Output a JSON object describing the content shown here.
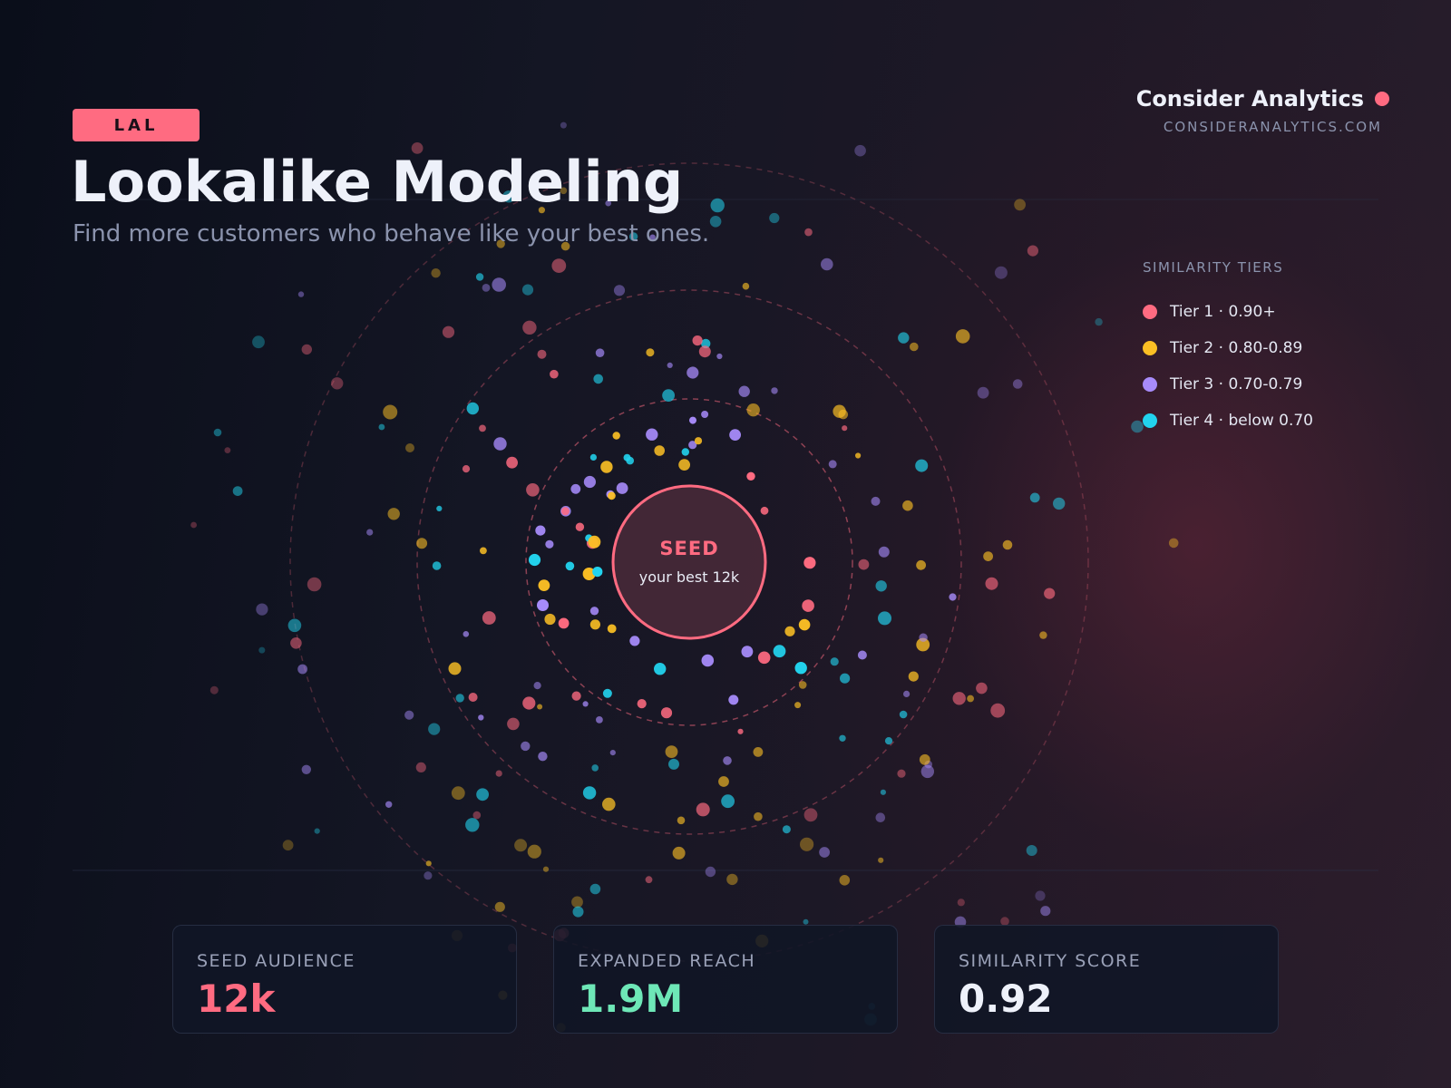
{
  "header": {
    "badge": "LAL",
    "title": "Lookalike Modeling",
    "subtitle": "Find more customers who behave like your best ones."
  },
  "brand": {
    "name": "Consider Analytics",
    "url": "CONSIDERANALYTICS.COM",
    "accent": "#ff6b81"
  },
  "seed": {
    "label": "SEED",
    "sublabel": "your best 12k"
  },
  "legend": {
    "title": "SIMILARITY TIERS",
    "items": [
      {
        "label": "Tier 1 · 0.90+",
        "color": "#ff6b81"
      },
      {
        "label": "Tier 2 · 0.80-0.89",
        "color": "#fbbf24"
      },
      {
        "label": "Tier 3 · 0.70-0.79",
        "color": "#a78bfa"
      },
      {
        "label": "Tier 4 · below 0.70",
        "color": "#22d3ee"
      }
    ]
  },
  "stats": [
    {
      "label": "SEED AUDIENCE",
      "value": "12k",
      "color": "#ff6b81"
    },
    {
      "label": "EXPANDED REACH",
      "value": "1.9M",
      "color": "#6ee7b7"
    },
    {
      "label": "SIMILARITY SCORE",
      "value": "0.92",
      "color": "#eef1fa"
    }
  ]
}
